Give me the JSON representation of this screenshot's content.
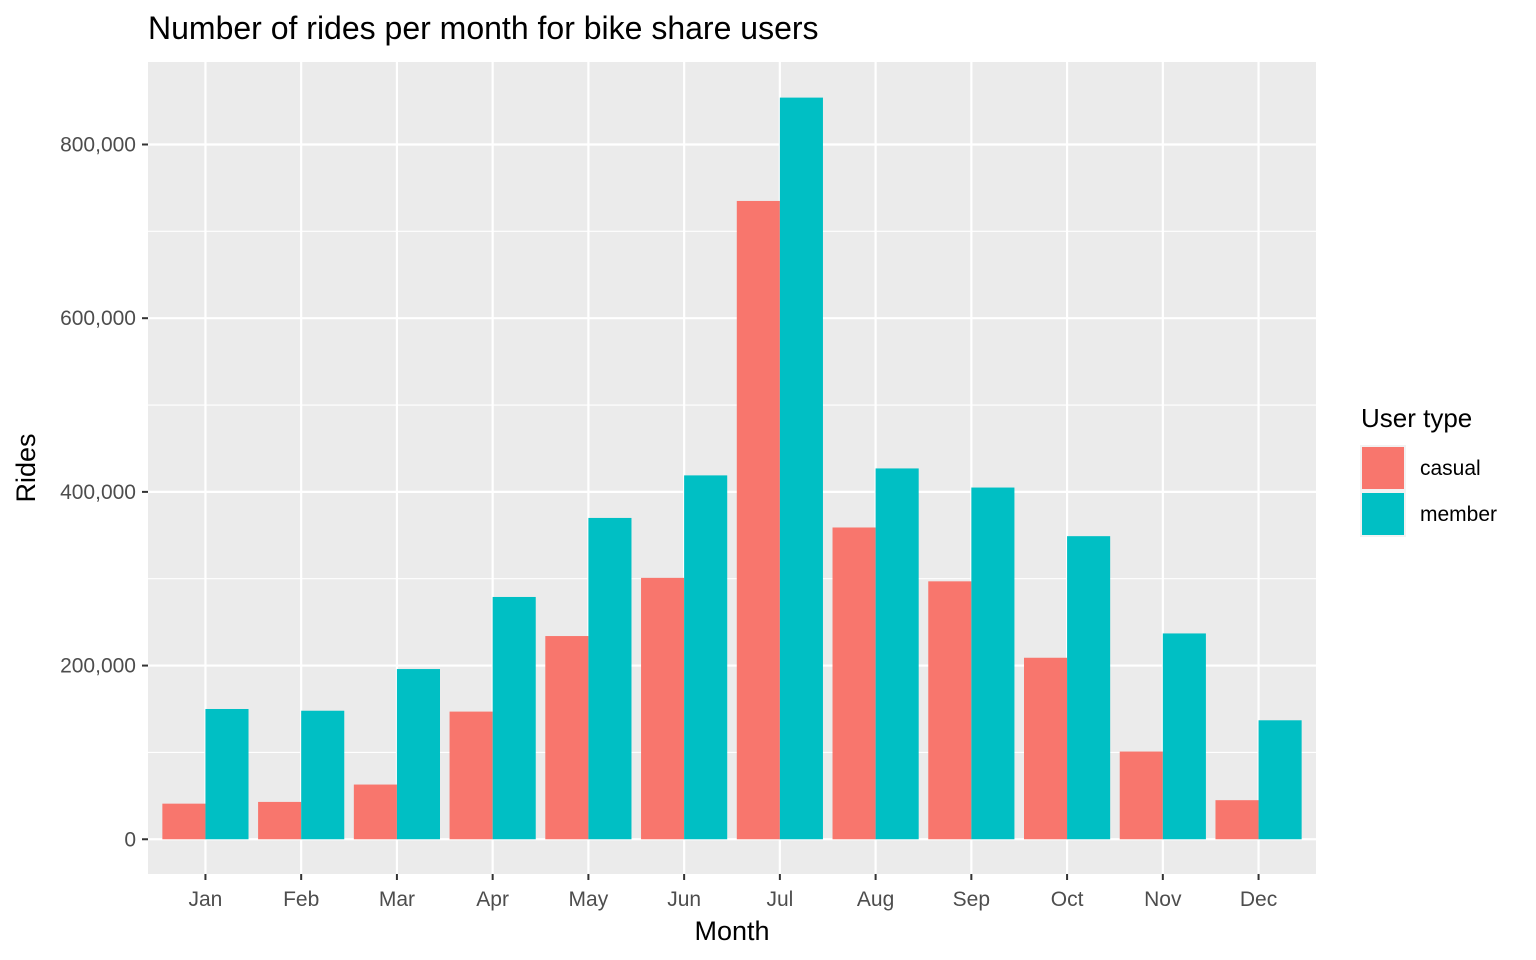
{
  "chart_data": {
    "type": "bar",
    "title": "Number of rides per month for bike share users",
    "xlabel": "Month",
    "ylabel": "Rides",
    "categories": [
      "Jan",
      "Feb",
      "Mar",
      "Apr",
      "May",
      "Jun",
      "Jul",
      "Aug",
      "Sep",
      "Oct",
      "Nov",
      "Dec"
    ],
    "series": [
      {
        "name": "casual",
        "color": "#F8766D",
        "values": [
          41000,
          43000,
          63000,
          147000,
          234000,
          301000,
          735000,
          359000,
          297000,
          209000,
          101000,
          45000
        ]
      },
      {
        "name": "member",
        "color": "#00BFC4",
        "values": [
          150000,
          148000,
          196000,
          279000,
          370000,
          419000,
          854000,
          427000,
          405000,
          349000,
          237000,
          137000
        ]
      }
    ],
    "ylim": [
      -40000,
      895000
    ],
    "y_ticks": [
      0,
      200000,
      400000,
      600000,
      800000
    ],
    "y_tick_labels": [
      "0",
      "200,000",
      "400,000",
      "600,000",
      "800,000"
    ],
    "grid": true,
    "panel_background": "#EBEBEB",
    "grid_color": "#FFFFFF",
    "legend": {
      "title": "User type",
      "position": "right"
    }
  }
}
